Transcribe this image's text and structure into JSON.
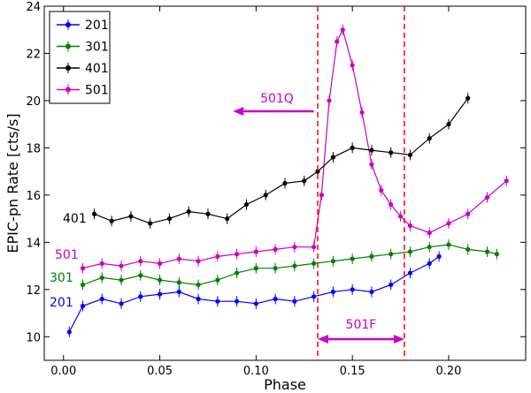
{
  "chart_data": {
    "type": "scatter",
    "title": "",
    "xlabel": "Phase",
    "ylabel": "EPIC-pn Rate [cts/s]",
    "xlim": [
      -0.01,
      0.24
    ],
    "ylim": [
      9,
      24
    ],
    "xticks": [
      0.0,
      0.05,
      0.1,
      0.15,
      0.2
    ],
    "xtick_labels": [
      "0.00",
      "0.05",
      "0.10",
      "0.15",
      "0.20"
    ],
    "yticks": [
      10,
      12,
      14,
      16,
      18,
      20,
      22,
      24
    ],
    "ytick_labels": [
      "10",
      "12",
      "14",
      "16",
      "18",
      "20",
      "22",
      "24"
    ],
    "legend_position": "top-left",
    "series": [
      {
        "name": "201",
        "color": "#0000ff",
        "label": "201",
        "x": [
          0.003,
          0.01,
          0.02,
          0.03,
          0.04,
          0.05,
          0.06,
          0.07,
          0.08,
          0.09,
          0.1,
          0.11,
          0.12,
          0.13,
          0.14,
          0.15,
          0.16,
          0.17,
          0.18,
          0.19,
          0.195
        ],
        "y": [
          10.2,
          11.3,
          11.6,
          11.4,
          11.7,
          11.8,
          11.9,
          11.6,
          11.5,
          11.5,
          11.4,
          11.6,
          11.5,
          11.7,
          11.9,
          12.0,
          11.9,
          12.2,
          12.7,
          13.1,
          13.4
        ]
      },
      {
        "name": "301",
        "color": "#008000",
        "label": "301",
        "x": [
          0.01,
          0.02,
          0.03,
          0.04,
          0.05,
          0.06,
          0.07,
          0.08,
          0.09,
          0.1,
          0.11,
          0.12,
          0.13,
          0.14,
          0.15,
          0.16,
          0.17,
          0.18,
          0.19,
          0.2,
          0.21,
          0.22,
          0.225
        ],
        "y": [
          12.2,
          12.5,
          12.4,
          12.6,
          12.4,
          12.3,
          12.2,
          12.4,
          12.7,
          12.9,
          12.9,
          13.0,
          13.1,
          13.2,
          13.3,
          13.4,
          13.5,
          13.6,
          13.8,
          13.9,
          13.7,
          13.6,
          13.5
        ]
      },
      {
        "name": "401",
        "color": "#000000",
        "label": "401",
        "x": [
          0.016,
          0.025,
          0.035,
          0.045,
          0.055,
          0.065,
          0.075,
          0.085,
          0.095,
          0.105,
          0.115,
          0.125,
          0.132,
          0.14,
          0.15,
          0.16,
          0.17,
          0.18,
          0.19,
          0.2,
          0.21
        ],
        "y": [
          15.2,
          14.9,
          15.1,
          14.8,
          15.0,
          15.3,
          15.2,
          15.0,
          15.6,
          16.0,
          16.5,
          16.6,
          17.0,
          17.6,
          18.0,
          17.9,
          17.8,
          17.7,
          18.4,
          19.0,
          20.1
        ]
      },
      {
        "name": "501",
        "color": "#c800c8",
        "label": "501",
        "x": [
          0.01,
          0.02,
          0.03,
          0.04,
          0.05,
          0.06,
          0.07,
          0.08,
          0.09,
          0.1,
          0.11,
          0.12,
          0.13,
          0.134,
          0.138,
          0.142,
          0.145,
          0.15,
          0.155,
          0.16,
          0.165,
          0.17,
          0.175,
          0.18,
          0.19,
          0.2,
          0.21,
          0.22,
          0.23
        ],
        "y": [
          12.9,
          13.1,
          13.0,
          13.2,
          13.1,
          13.3,
          13.2,
          13.4,
          13.5,
          13.6,
          13.7,
          13.8,
          13.8,
          16.0,
          20.0,
          22.5,
          23.0,
          21.5,
          19.5,
          17.3,
          16.2,
          15.6,
          15.1,
          14.7,
          14.4,
          14.8,
          15.2,
          15.9,
          16.6
        ]
      }
    ],
    "vertical_lines": [
      {
        "x": 0.132,
        "color": "#ff0000",
        "style": "dashed"
      },
      {
        "x": 0.177,
        "color": "#ff0000",
        "style": "dashed"
      }
    ],
    "annotations": [
      {
        "text": "501Q",
        "arrow": "left",
        "x_from": 0.13,
        "x_to": 0.088,
        "y": 19.55
      },
      {
        "text": "501F",
        "arrow": "both",
        "x_from": 0.132,
        "x_to": 0.177,
        "y": 9.9
      }
    ]
  }
}
